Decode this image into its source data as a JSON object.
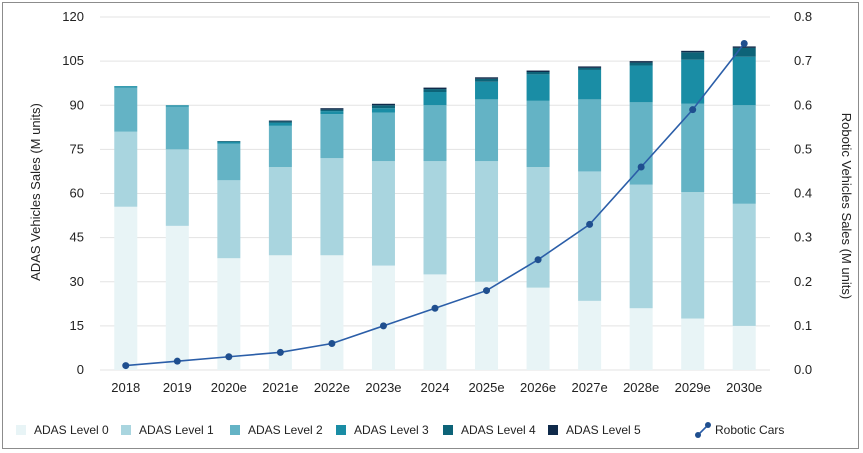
{
  "chart_data": {
    "type": "bar",
    "stacked": true,
    "categories": [
      "2018",
      "2019",
      "2020e",
      "2021e",
      "2022e",
      "2023e",
      "2024",
      "2025e",
      "2026e",
      "2027e",
      "2028e",
      "2029e",
      "2030e"
    ],
    "series": [
      {
        "name": "ADAS Level 0",
        "color": "#e8f4f6",
        "values": [
          55.5,
          49,
          38,
          39,
          39,
          35.5,
          32.5,
          30,
          28,
          23.5,
          21,
          17.5,
          15
        ]
      },
      {
        "name": "ADAS Level 1",
        "color": "#a9d5df",
        "values": [
          25.5,
          26,
          26.5,
          30,
          33,
          35.5,
          38.5,
          41,
          41,
          44,
          42,
          43,
          41.5
        ]
      },
      {
        "name": "ADAS Level 2",
        "color": "#64b3c5",
        "values": [
          15,
          14.5,
          12.5,
          14,
          15,
          16.5,
          19,
          21,
          22.5,
          24.5,
          28,
          30,
          33.5
        ]
      },
      {
        "name": "ADAS Level 3",
        "color": "#1a8da5",
        "values": [
          0.5,
          0.5,
          0.5,
          1,
          1,
          1.5,
          4.5,
          6,
          9,
          10,
          12.5,
          15,
          16.5
        ]
      },
      {
        "name": "ADAS Level 4",
        "color": "#0d6378",
        "values": [
          0,
          0,
          0.3,
          0.5,
          0.5,
          1,
          1,
          1,
          0.8,
          0.7,
          1,
          2.5,
          3
        ]
      },
      {
        "name": "ADAS Level 5",
        "color": "#0f2a4a",
        "values": [
          0,
          0,
          0,
          0.3,
          0.5,
          0.5,
          0.5,
          0.5,
          0.5,
          0.5,
          0.5,
          0.5,
          0.5
        ]
      }
    ],
    "line_series": {
      "name": "Robotic Cars",
      "color": "#2b5ea8",
      "values": [
        0.01,
        0.02,
        0.03,
        0.04,
        0.06,
        0.1,
        0.14,
        0.18,
        0.25,
        0.33,
        0.46,
        0.59,
        0.74
      ]
    },
    "ylabel": "ADAS Vehicles Sales (M units)",
    "y2label": "Robotic Vehicles Sales (M units)",
    "ylim": [
      0,
      120
    ],
    "yticks": [
      "0",
      "15",
      "30",
      "45",
      "60",
      "75",
      "90",
      "105",
      "120"
    ],
    "y2lim": [
      0,
      0.8
    ],
    "y2ticks": [
      "0.0",
      "0.1",
      "0.2",
      "0.3",
      "0.4",
      "0.5",
      "0.6",
      "0.7",
      "0.8"
    ],
    "grid": true,
    "legend_position": "bottom"
  }
}
